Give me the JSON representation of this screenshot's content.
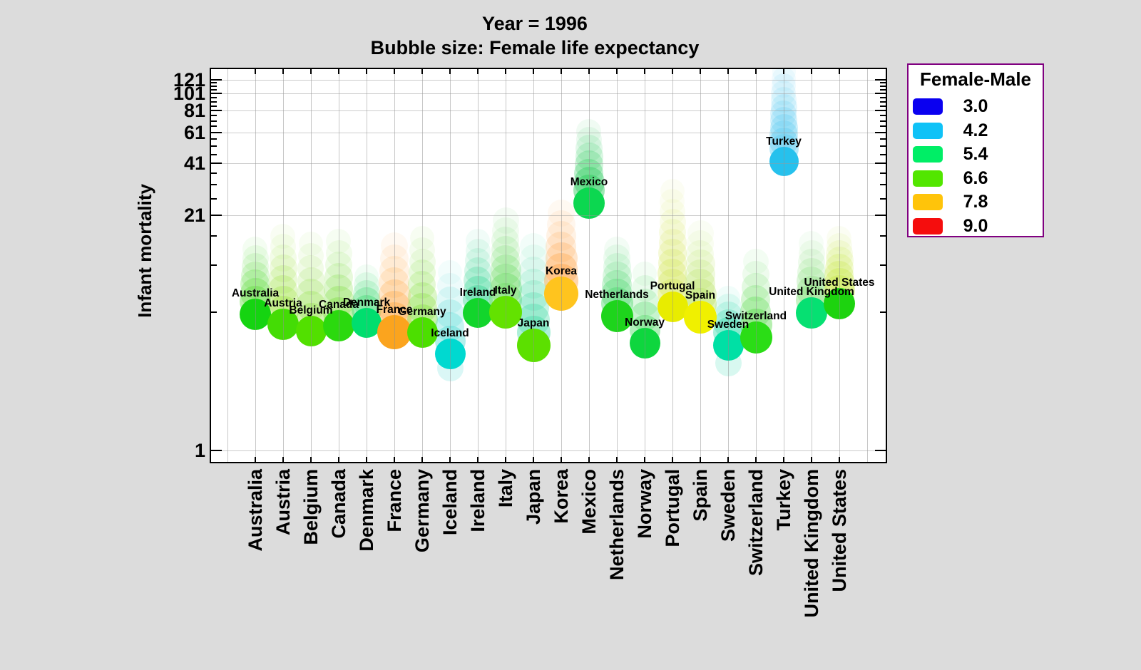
{
  "title": {
    "line1": "Year = 1996",
    "line2": "Bubble size: Female life expectancy"
  },
  "axes": {
    "y": {
      "label": "Infant mortality",
      "scale": "log",
      "major_ticks": [
        1,
        21,
        41,
        61,
        81,
        101,
        121
      ],
      "minor_ticks": [
        6,
        11,
        16,
        26,
        31,
        36,
        46,
        51,
        56,
        66,
        71,
        76,
        86,
        91,
        96,
        106,
        111,
        116
      ]
    },
    "x": {
      "categories": [
        "Australia",
        "Austria",
        "Belgium",
        "Canada",
        "Denmark",
        "France",
        "Germany",
        "Iceland",
        "Ireland",
        "Italy",
        "Japan",
        "Korea",
        "Mexico",
        "Netherlands",
        "Norway",
        "Portugal",
        "Spain",
        "Sweden",
        "Switzerland",
        "Turkey",
        "United Kingdom",
        "United States"
      ]
    }
  },
  "legend": {
    "title": "Female-Male",
    "border_color": "#800080",
    "entries": [
      {
        "label": "3.0",
        "color": "#0A00F0"
      },
      {
        "label": "4.2",
        "color": "#0FC2F7"
      },
      {
        "label": "5.4",
        "color": "#00EE66"
      },
      {
        "label": "6.6",
        "color": "#52E600"
      },
      {
        "label": "7.8",
        "color": "#FFC40A"
      },
      {
        "label": "9.0",
        "color": "#F50D0D"
      }
    ]
  },
  "chart_data": {
    "type": "scatter",
    "subtype": "bubble",
    "title": "Year = 1996",
    "subtitle": "Bubble size: Female life expectancy",
    "ylabel": "Infant mortality",
    "y_scale": "log",
    "ylim": [
      1,
      135
    ],
    "grid": true,
    "legend_position": "right",
    "size_encoding": "Female life expectancy",
    "color_encoding": "Female-Male",
    "categories": [
      "Australia",
      "Austria",
      "Belgium",
      "Canada",
      "Denmark",
      "France",
      "Germany",
      "Iceland",
      "Ireland",
      "Italy",
      "Japan",
      "Korea",
      "Mexico",
      "Netherlands",
      "Norway",
      "Portugal",
      "Spain",
      "Sweden",
      "Switzerland",
      "Turkey",
      "United Kingdom",
      "United States"
    ],
    "points": [
      {
        "country": "Australia",
        "infant_mortality": 5.8,
        "color": "#15D411",
        "radius": 22,
        "trail": {
          "top": 13.5,
          "color": "#66DD44",
          "steps": 7
        }
      },
      {
        "country": "Austria",
        "infant_mortality": 5.1,
        "color": "#44DC05",
        "radius": 22,
        "trail": {
          "top": 16.0,
          "color": "#A6E650",
          "steps": 8
        }
      },
      {
        "country": "Belgium",
        "infant_mortality": 4.7,
        "color": "#52E000",
        "radius": 21.5,
        "trail": {
          "top": 14.5,
          "color": "#9CE355",
          "steps": 7
        }
      },
      {
        "country": "Canada",
        "infant_mortality": 5.0,
        "color": "#2BD90E",
        "radius": 22,
        "trail": {
          "top": 15.0,
          "color": "#86E04C",
          "steps": 7
        }
      },
      {
        "country": "Denmark",
        "infant_mortality": 5.2,
        "color": "#00DE6E",
        "radius": 21,
        "trail": {
          "top": 9.5,
          "color": "#44DC77",
          "steps": 5
        }
      },
      {
        "country": "France",
        "infant_mortality": 4.6,
        "color": "#FBA41E",
        "radius": 24,
        "trail": {
          "top": 14.0,
          "color": "#FFAA44",
          "steps": 7
        }
      },
      {
        "country": "Germany",
        "infant_mortality": 4.6,
        "color": "#4CDF00",
        "radius": 21.5,
        "trail": {
          "top": 15.5,
          "color": "#8CE24A",
          "steps": 8
        }
      },
      {
        "country": "Iceland",
        "infant_mortality": 3.5,
        "color": "#00D9D0",
        "radius": 21.5,
        "trail": {
          "top": 10.0,
          "color": "#55DCD5",
          "steps": 6
        },
        "trail_below": {
          "value": 2.9,
          "opacity": 0.22
        }
      },
      {
        "country": "Ireland",
        "infant_mortality": 5.9,
        "color": "#12D52C",
        "radius": 21,
        "trail": {
          "top": 15.0,
          "color": "#3DD898",
          "steps": 7
        }
      },
      {
        "country": "Italy",
        "infant_mortality": 6.0,
        "color": "#63E200",
        "radius": 23,
        "trail": {
          "top": 19.5,
          "color": "#6ADB60",
          "steps": 9
        }
      },
      {
        "country": "Japan",
        "infant_mortality": 3.9,
        "color": "#5CE000",
        "radius": 23.5,
        "trail": {
          "top": 14.0,
          "color": "#4ADCA8",
          "steps": 8
        }
      },
      {
        "country": "Korea",
        "infant_mortality": 7.6,
        "color": "#FFC41E",
        "radius": 24,
        "trail": {
          "top": 21.5,
          "color": "#FFA54A",
          "steps": 7
        }
      },
      {
        "country": "Mexico",
        "infant_mortality": 24.5,
        "color": "#0CD750",
        "radius": 22,
        "trail": {
          "top": 62.0,
          "color": "#2ACC5C",
          "steps": 8
        }
      },
      {
        "country": "Netherlands",
        "infant_mortality": 5.7,
        "color": "#1ED41C",
        "radius": 22.5,
        "trail": {
          "top": 13.5,
          "color": "#4ED96E",
          "steps": 7
        }
      },
      {
        "country": "Norway",
        "infant_mortality": 4.0,
        "color": "#0ED63E",
        "radius": 21.5,
        "trail": {
          "top": 9.8,
          "color": "#50DC66",
          "steps": 5
        }
      },
      {
        "country": "Portugal",
        "infant_mortality": 6.4,
        "color": "#E8EC00",
        "radius": 21.5,
        "trail": {
          "top": 28.5,
          "color": "#D7E860",
          "steps": 11
        }
      },
      {
        "country": "Spain",
        "infant_mortality": 5.6,
        "color": "#F0F000",
        "radius": 23,
        "trail": {
          "top": 16.5,
          "color": "#BBE566",
          "steps": 8
        }
      },
      {
        "country": "Sweden",
        "infant_mortality": 3.9,
        "color": "#00E0A5",
        "radius": 21.5,
        "trail": {
          "top": 7.2,
          "color": "#3DDDB2",
          "steps": 5
        },
        "trail_below": {
          "value": 3.1,
          "opacity": 0.2
        }
      },
      {
        "country": "Switzerland",
        "infant_mortality": 4.3,
        "color": "#2BDD16",
        "radius": 22.5,
        "trail": {
          "top": 11.5,
          "color": "#5ADC4E",
          "steps": 6
        }
      },
      {
        "country": "Turkey",
        "infant_mortality": 41.9,
        "color": "#26C1ED",
        "radius": 20.5,
        "trail": {
          "top": 134,
          "color": "#63CEF2",
          "steps": 12
        }
      },
      {
        "country": "United Kingdom",
        "infant_mortality": 5.9,
        "color": "#06E072",
        "radius": 22,
        "trail": {
          "top": 14.5,
          "color": "#86DF7A",
          "steps": 7
        }
      },
      {
        "country": "United States",
        "infant_mortality": 6.7,
        "color": "#1DD30F",
        "radius": 22,
        "trail": {
          "top": 15.5,
          "color": "#C9E84E",
          "steps": 8
        }
      }
    ]
  }
}
